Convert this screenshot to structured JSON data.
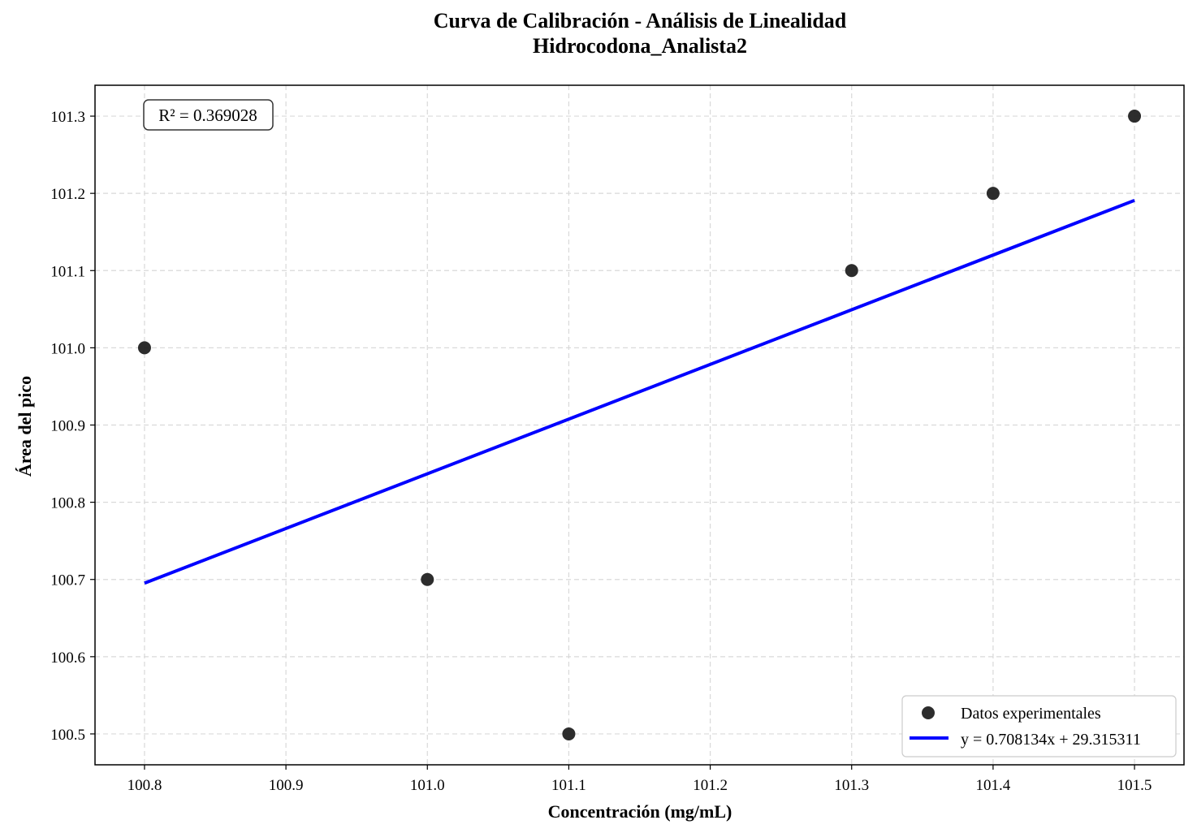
{
  "chart_data": {
    "type": "scatter",
    "title": "Curva de Calibración - Análisis de Linealidad",
    "subtitle": "Hidrocodona_Analista2",
    "xlabel": "Concentración (mg/mL)",
    "ylabel": "Área del pico",
    "xlim": [
      100.765,
      101.535
    ],
    "ylim": [
      100.46,
      101.34
    ],
    "x_ticks": [
      "100.8",
      "100.9",
      "101.0",
      "101.1",
      "101.2",
      "101.3",
      "101.4",
      "101.5"
    ],
    "y_ticks": [
      "100.5",
      "100.6",
      "100.7",
      "100.8",
      "100.9",
      "101.0",
      "101.1",
      "101.2",
      "101.3"
    ],
    "grid": true,
    "series": [
      {
        "name": "Datos experimentales",
        "kind": "scatter",
        "color": "#222222",
        "x": [
          100.8,
          101.0,
          101.1,
          101.3,
          101.4,
          101.5
        ],
        "y": [
          101.0,
          100.7,
          100.5,
          101.1,
          101.2,
          101.3
        ]
      },
      {
        "name": "y = 0.708134x + 29.315311",
        "kind": "line",
        "color": "#0000ff",
        "slope": 0.708134,
        "intercept": 29.315311,
        "x": [
          100.8,
          101.5
        ]
      }
    ],
    "annotation": "R² = 0.369028",
    "annotation_position": "top-left",
    "legend_position": "bottom-right"
  }
}
